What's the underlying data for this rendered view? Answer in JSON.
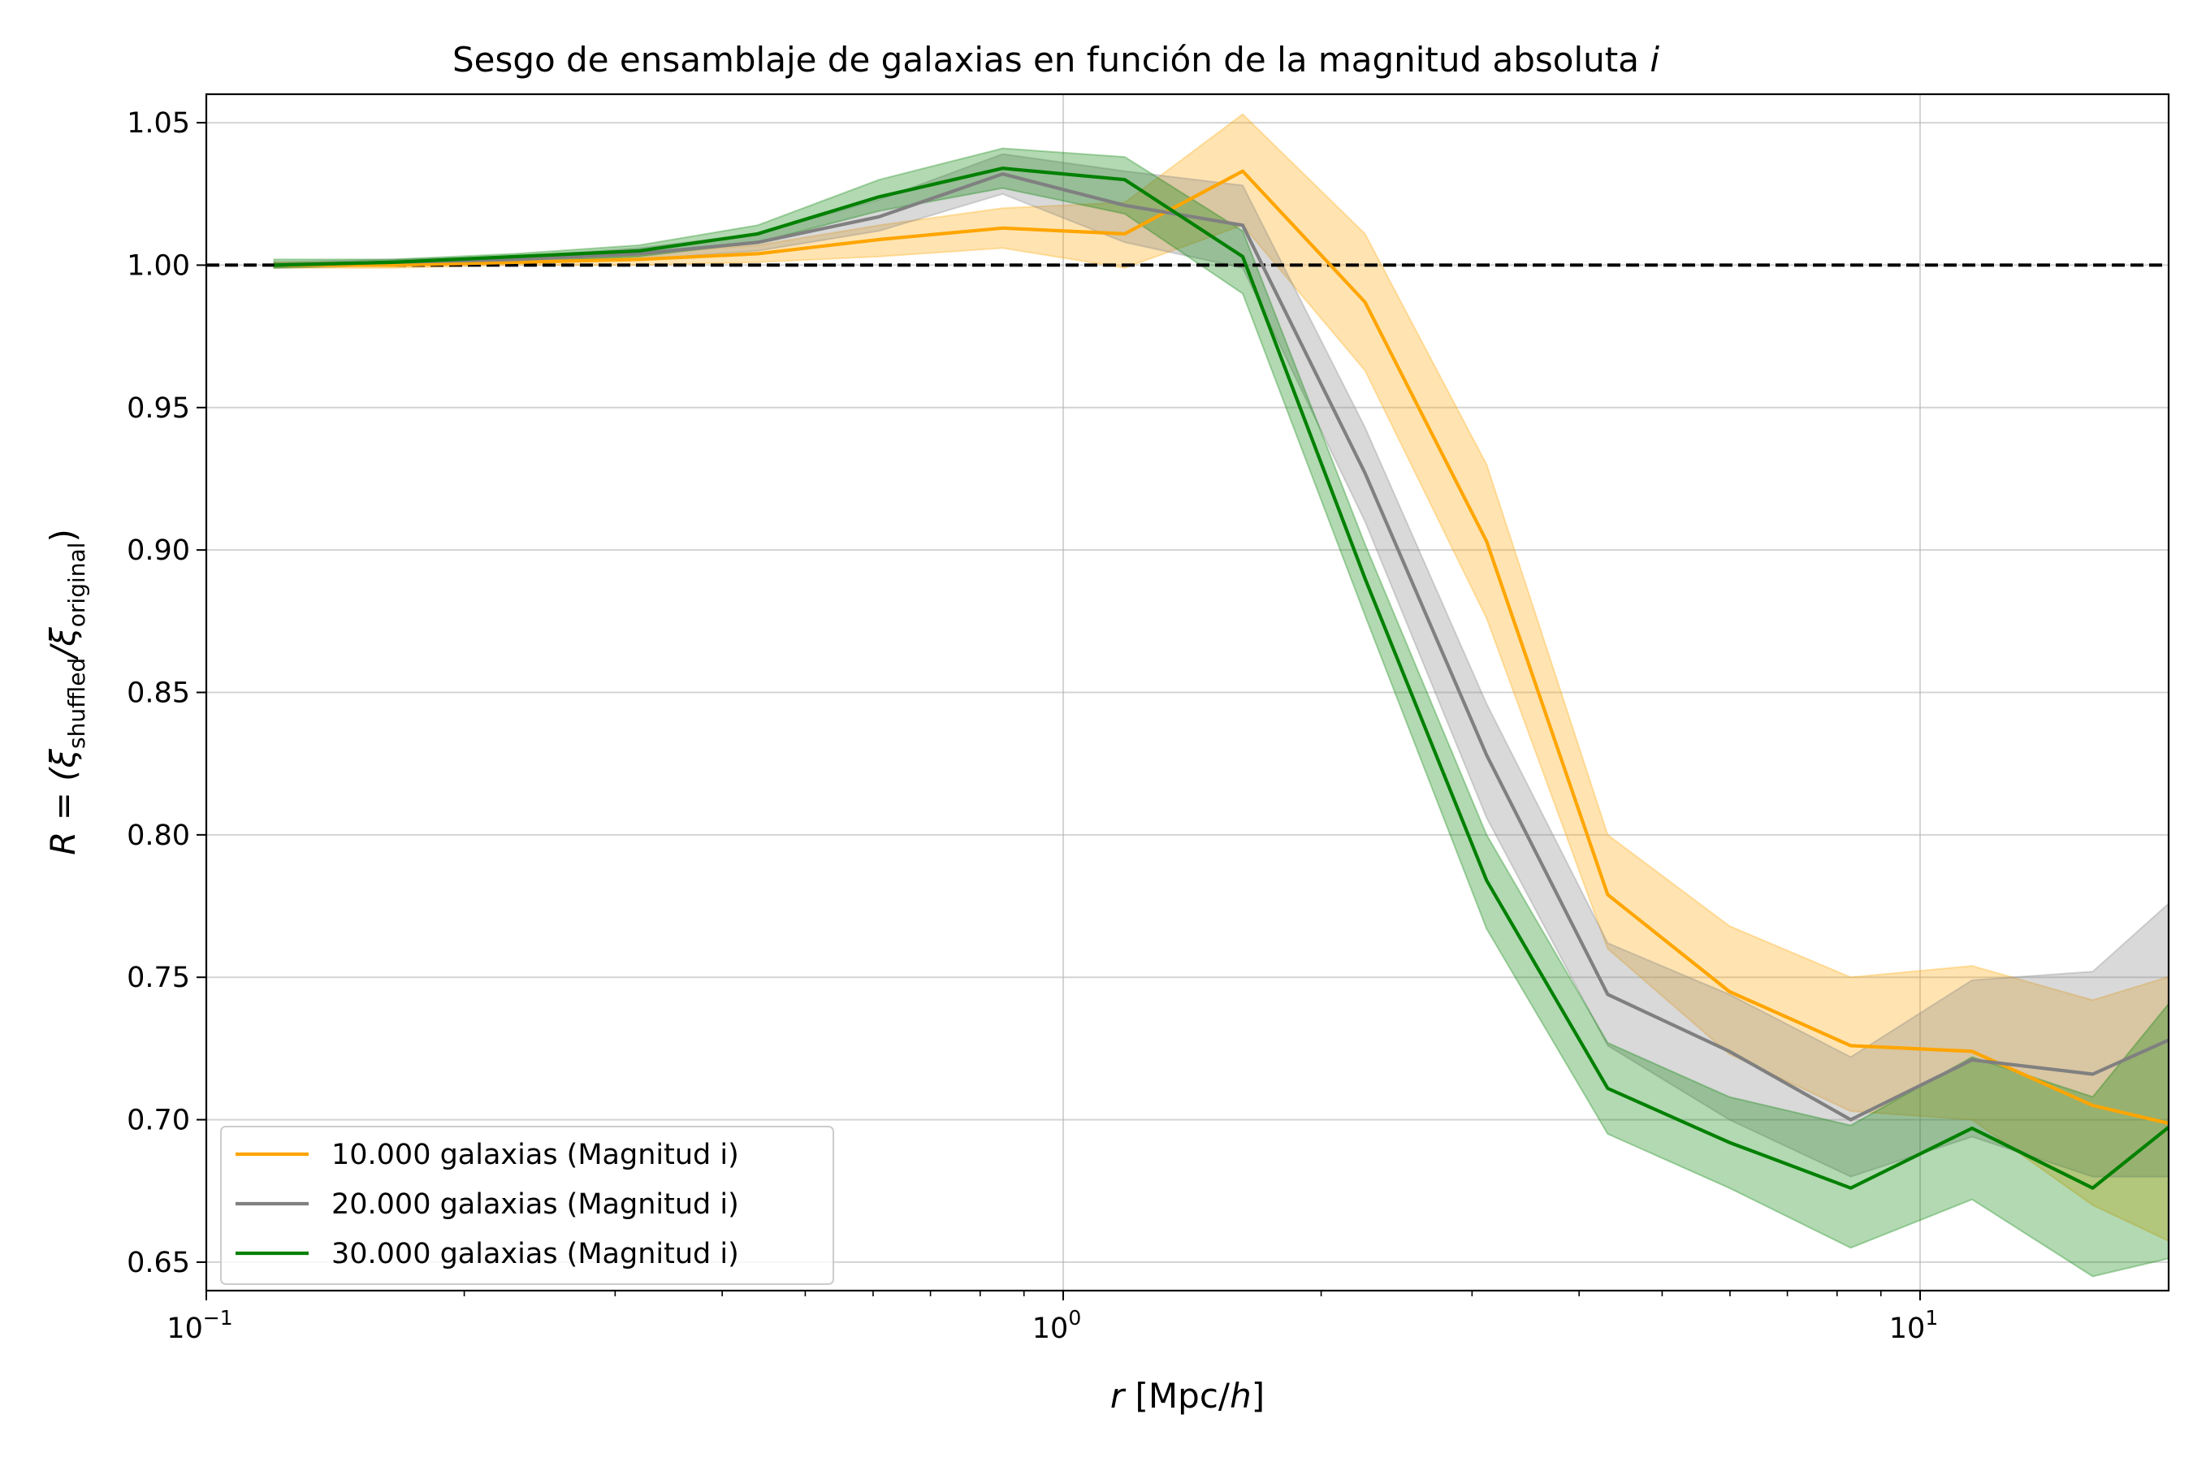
{
  "chart_data": {
    "type": "line",
    "title": "Sesgo de ensamblaje de galaxias en función de la magnitud absoluta",
    "title_italic": "i",
    "xlabel_var": "r",
    "xlabel_unit_pre": "[Mpc/",
    "xlabel_unit_var": "h",
    "xlabel_unit_post": "]",
    "ylabel_prefix": "R = (ξ",
    "ylabel_sub1": "shuffled",
    "ylabel_mid": "/ξ",
    "ylabel_sub2": "original",
    "ylabel_suffix": ")",
    "x_scale": "log",
    "xlim": [
      0.1,
      19.5
    ],
    "ylim": [
      0.64,
      1.06
    ],
    "x_ticks": [
      {
        "base": "10",
        "exp": "−1"
      },
      {
        "base": "10",
        "exp": "0"
      },
      {
        "base": "10",
        "exp": "1"
      }
    ],
    "y_ticks": [
      "0.65",
      "0.70",
      "0.75",
      "0.80",
      "0.85",
      "0.90",
      "0.95",
      "1.00",
      "1.05"
    ],
    "grid": true,
    "legend_position": "lower-left",
    "reference_line": {
      "y": 1.0,
      "style": "dashed",
      "color": "#000000"
    },
    "x": [
      0.12,
      0.165,
      0.23,
      0.32,
      0.44,
      0.61,
      0.85,
      1.18,
      1.62,
      2.25,
      3.12,
      4.32,
      5.99,
      8.3,
      11.5,
      15.9,
      22.0
    ],
    "series": [
      {
        "name": "10.000 galaxias (Magnitud i)",
        "color": "#FFA500",
        "values": [
          1.0,
          1.0,
          1.001,
          1.002,
          1.004,
          1.009,
          1.013,
          1.011,
          1.033,
          0.987,
          0.903,
          0.779,
          0.745,
          0.726,
          0.724,
          0.705,
          0.695
        ],
        "lower": [
          0.999,
          0.999,
          1.0,
          1.0,
          1.001,
          1.003,
          1.006,
          0.999,
          1.014,
          0.963,
          0.876,
          0.76,
          0.723,
          0.703,
          0.7,
          0.67,
          0.65
        ],
        "upper": [
          1.001,
          1.001,
          1.002,
          1.004,
          1.007,
          1.014,
          1.02,
          1.022,
          1.053,
          1.011,
          0.93,
          0.8,
          0.768,
          0.75,
          0.754,
          0.742,
          0.755
        ]
      },
      {
        "name": "20.000 galaxias (Magnitud i)",
        "color": "#808080",
        "values": [
          1.0,
          1.001,
          1.002,
          1.004,
          1.008,
          1.017,
          1.032,
          1.021,
          1.014,
          0.927,
          0.828,
          0.744,
          0.724,
          0.7,
          0.721,
          0.716,
          0.735
        ],
        "lower": [
          0.999,
          1.0,
          1.001,
          1.002,
          1.005,
          1.012,
          1.025,
          1.008,
          0.999,
          0.91,
          0.806,
          0.726,
          0.7,
          0.68,
          0.694,
          0.68,
          0.68
        ],
        "upper": [
          1.001,
          1.002,
          1.003,
          1.006,
          1.011,
          1.023,
          1.039,
          1.033,
          1.028,
          0.943,
          0.846,
          0.762,
          0.744,
          0.722,
          0.749,
          0.752,
          0.79
        ]
      },
      {
        "name": "30.000 galaxias (Magnitud i)",
        "color": "#008000",
        "values": [
          1.0,
          1.001,
          1.003,
          1.005,
          1.011,
          1.024,
          1.034,
          1.03,
          1.003,
          0.89,
          0.784,
          0.711,
          0.692,
          0.676,
          0.697,
          0.676,
          0.71
        ],
        "lower": [
          0.999,
          1.0,
          1.001,
          1.003,
          1.008,
          1.019,
          1.027,
          1.018,
          0.99,
          0.877,
          0.767,
          0.695,
          0.676,
          0.655,
          0.672,
          0.645,
          0.655
        ],
        "upper": [
          1.002,
          1.002,
          1.004,
          1.007,
          1.014,
          1.03,
          1.041,
          1.038,
          1.012,
          0.902,
          0.8,
          0.727,
          0.708,
          0.698,
          0.722,
          0.708,
          0.76
        ]
      }
    ]
  }
}
